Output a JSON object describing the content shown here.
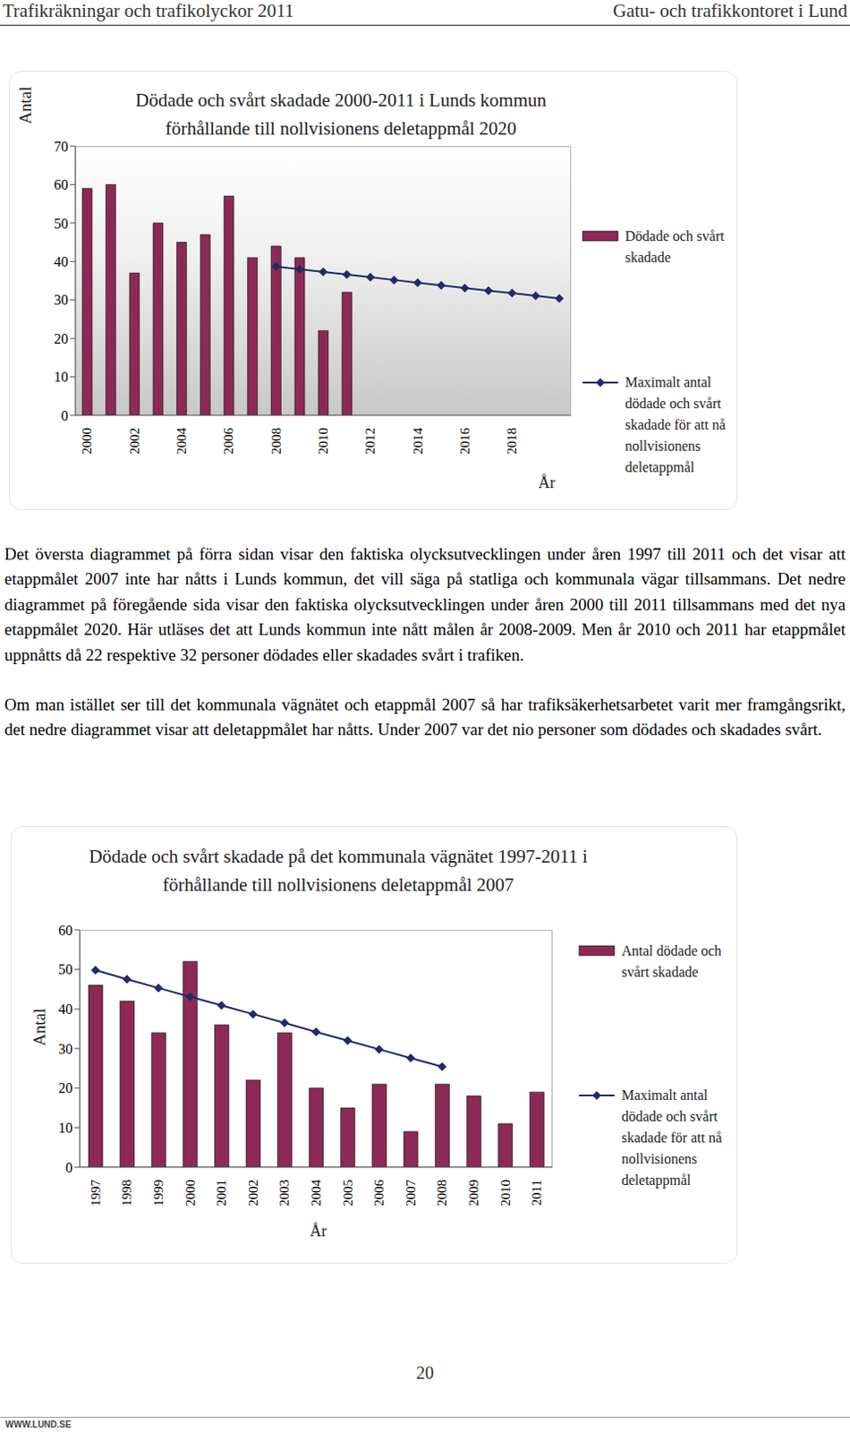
{
  "header": {
    "left": "Trafikräkningar och trafikolyckor 2011",
    "right": "Gatu- och trafikkontoret i Lund"
  },
  "chart_data": [
    {
      "type": "bar",
      "title": "Dödade och svårt skadade 2000-2011 i Lunds kommun förhållande till nollvisionens deletappmål 2020",
      "y_label": "Antal",
      "x_label": "År",
      "categories": [
        "2000",
        null,
        "2002",
        null,
        "2004",
        null,
        "2006",
        null,
        "2008",
        null,
        "2010",
        null,
        "2012",
        null,
        "2014",
        null,
        "2016",
        null,
        "2018",
        null,
        null
      ],
      "series": [
        {
          "name": "Dödade och svårt skadade",
          "type": "bar",
          "color": "#8c2a55",
          "values": [
            59,
            60,
            37,
            50,
            45,
            47,
            57,
            41,
            44,
            41,
            22,
            32,
            null,
            null,
            null,
            null,
            null,
            null,
            null,
            null,
            null
          ]
        },
        {
          "name": "Maximalt antal dödade och svårt skadade för att nå nollvisionens deletappmål",
          "type": "line",
          "marker": "diamond",
          "color": "#1f2a6b",
          "values": [
            null,
            null,
            null,
            null,
            null,
            null,
            null,
            null,
            38.7,
            38.0,
            37.3,
            36.6,
            35.9,
            35.2,
            34.5,
            33.8,
            33.1,
            32.4,
            31.8,
            31.1,
            30.4
          ]
        }
      ],
      "ylim": [
        0,
        70
      ],
      "yticks": [
        0,
        10,
        20,
        30,
        40,
        50,
        60,
        70
      ],
      "grid": false,
      "legend": "right"
    },
    {
      "type": "bar",
      "title": "Dödade och svårt skadade på det kommunala vägnätet 1997-2011 i förhållande till nollvisionens deletappmål 2007",
      "y_label": "Antal",
      "x_label": "År",
      "categories": [
        "1997",
        "1998",
        "1999",
        "2000",
        "2001",
        "2002",
        "2003",
        "2004",
        "2005",
        "2006",
        "2007",
        "2008",
        "2009",
        "2010",
        "2011"
      ],
      "series": [
        {
          "name": "Antal dödade och svårt skadade",
          "type": "bar",
          "color": "#8c2a55",
          "values": [
            46,
            42,
            34,
            52,
            36,
            22,
            34,
            20,
            15,
            21,
            9,
            21,
            18,
            11,
            19
          ]
        },
        {
          "name": "Maximalt antal dödade och svårt skadade för att nå nollvisionens deletappmål",
          "type": "line",
          "marker": "diamond",
          "color": "#1f2a6b",
          "values": [
            49.8,
            47.5,
            45.3,
            43.1,
            40.9,
            38.7,
            36.5,
            34.2,
            32.0,
            29.8,
            27.6,
            25.4,
            null,
            null,
            null
          ]
        }
      ],
      "ylim": [
        0,
        60
      ],
      "yticks": [
        0,
        10,
        20,
        30,
        40,
        50,
        60
      ],
      "grid": false,
      "legend": "right"
    }
  ],
  "paragraphs": [
    "Det översta diagrammet på förra sidan visar den faktiska olycksutvecklingen under åren 1997 till 2011 och det visar att etappmålet 2007 inte har nåtts i Lunds kommun, det vill säga på statliga och kommunala vägar tillsammans. Det nedre diagrammet på föregående sida visar den faktiska olycksutvecklingen under åren 2000 till 2011 tillsammans med det nya etappmålet 2020. Här utläses det att Lunds kommun inte nått målen år 2008-2009. Men år 2010 och 2011 har etappmålet uppnåtts då 22 respektive 32 personer dödades eller skadades svårt i trafiken.",
    "Om man istället ser till det kommunala vägnätet och etappmål 2007 så har trafiksäkerhetsarbetet varit mer framgångsrikt, det nedre diagrammet visar att deletappmålet har nåtts. Under 2007 var det nio personer som dödades och skadades svårt."
  ],
  "page_number": "20",
  "footer": "WWW.LUND.SE"
}
